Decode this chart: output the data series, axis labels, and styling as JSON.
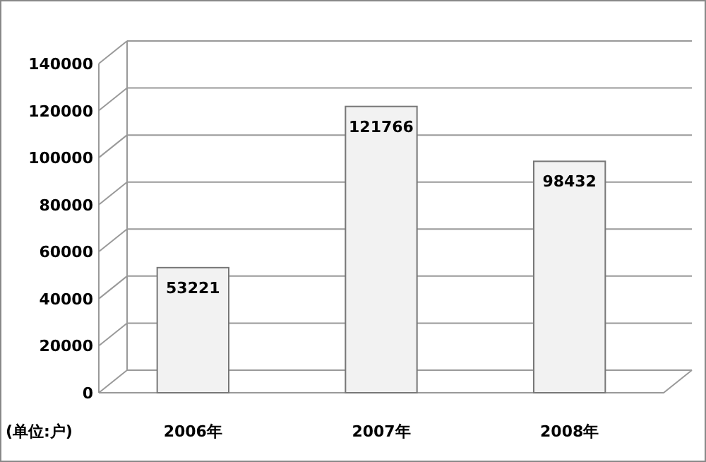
{
  "chart_data": {
    "type": "bar",
    "categories": [
      "2006年",
      "2007年",
      "2008年"
    ],
    "values": [
      53221,
      121766,
      98432
    ],
    "color": "#f2f2f2",
    "ylim": [
      0,
      140000
    ],
    "yticks": [
      0,
      20000,
      40000,
      60000,
      80000,
      100000,
      120000,
      140000
    ],
    "grid": "y",
    "data_labels": true,
    "annotations": [
      "(单位:户)"
    ]
  }
}
